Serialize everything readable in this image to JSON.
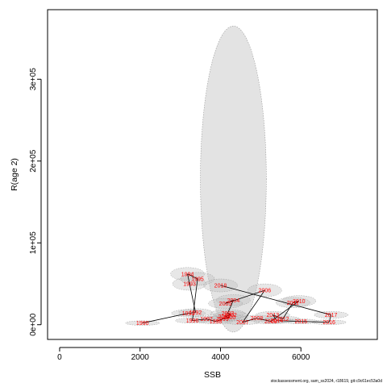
{
  "chart_data": {
    "type": "scatter",
    "xlabel": "SSB",
    "ylabel": "R(age 2)",
    "xlim": [
      -300,
      7900
    ],
    "ylim": [
      -18000,
      385000
    ],
    "x_ticks": [
      {
        "value": 0,
        "label": "0"
      },
      {
        "value": 2000,
        "label": "2000"
      },
      {
        "value": 4000,
        "label": "4000"
      },
      {
        "value": 6000,
        "label": "6000"
      }
    ],
    "y_ticks": [
      {
        "value": 0,
        "label": "0e+00"
      },
      {
        "value": 100000,
        "label": "1e+05"
      },
      {
        "value": 200000,
        "label": "2e+05"
      },
      {
        "value": 300000,
        "label": "3e+05"
      }
    ],
    "big_ellipse": {
      "cx": 4320,
      "cy": 178000,
      "rx": 820,
      "ry": 187000
    },
    "path": [
      {
        "year": "1990",
        "x": 2060,
        "y": 2000
      },
      {
        "year": "1991",
        "x": 3200,
        "y": 14000
      },
      {
        "year": "1992",
        "x": 3380,
        "y": 15000
      },
      {
        "year": "1993",
        "x": 3230,
        "y": 50000
      },
      {
        "year": "1994",
        "x": 3180,
        "y": 62000
      },
      {
        "year": "1995",
        "x": 3430,
        "y": 56000
      },
      {
        "year": "1996",
        "x": 3300,
        "y": 5000
      },
      {
        "year": "1997",
        "x": 3650,
        "y": 7000
      },
      {
        "year": "1998",
        "x": 3880,
        "y": 4000
      },
      {
        "year": "1999",
        "x": 4050,
        "y": 7000
      },
      {
        "year": "2000",
        "x": 4220,
        "y": 9000
      },
      {
        "year": "2001",
        "x": 4100,
        "y": 10000
      },
      {
        "year": "2002",
        "x": 4250,
        "y": 12000
      },
      {
        "year": "2003",
        "x": 4180,
        "y": 14000
      },
      {
        "year": "2004",
        "x": 4320,
        "y": 30000
      },
      {
        "year": "2005",
        "x": 4120,
        "y": 26000
      },
      {
        "year": "2006",
        "x": 5100,
        "y": 42000
      },
      {
        "year": "2007",
        "x": 4550,
        "y": 3000
      },
      {
        "year": "2008",
        "x": 4900,
        "y": 8000
      },
      {
        "year": "2009",
        "x": 5250,
        "y": 4000
      },
      {
        "year": "2010",
        "x": 5950,
        "y": 29000
      },
      {
        "year": "2011",
        "x": 5800,
        "y": 27000
      },
      {
        "year": "2012",
        "x": 5550,
        "y": 7000
      },
      {
        "year": "2013",
        "x": 5300,
        "y": 12000
      },
      {
        "year": "2014",
        "x": 5400,
        "y": 5000
      },
      {
        "year": "2015",
        "x": 6000,
        "y": 4000
      },
      {
        "year": "2016",
        "x": 6700,
        "y": 3000
      },
      {
        "year": "2017",
        "x": 6750,
        "y": 12000
      },
      {
        "year": "2018",
        "x": 4000,
        "y": 48000
      }
    ],
    "grid": false,
    "legend": "none"
  },
  "footer": "stockassessment.org, sam_ss2024, r18619, git:c9c61ec53a0d"
}
